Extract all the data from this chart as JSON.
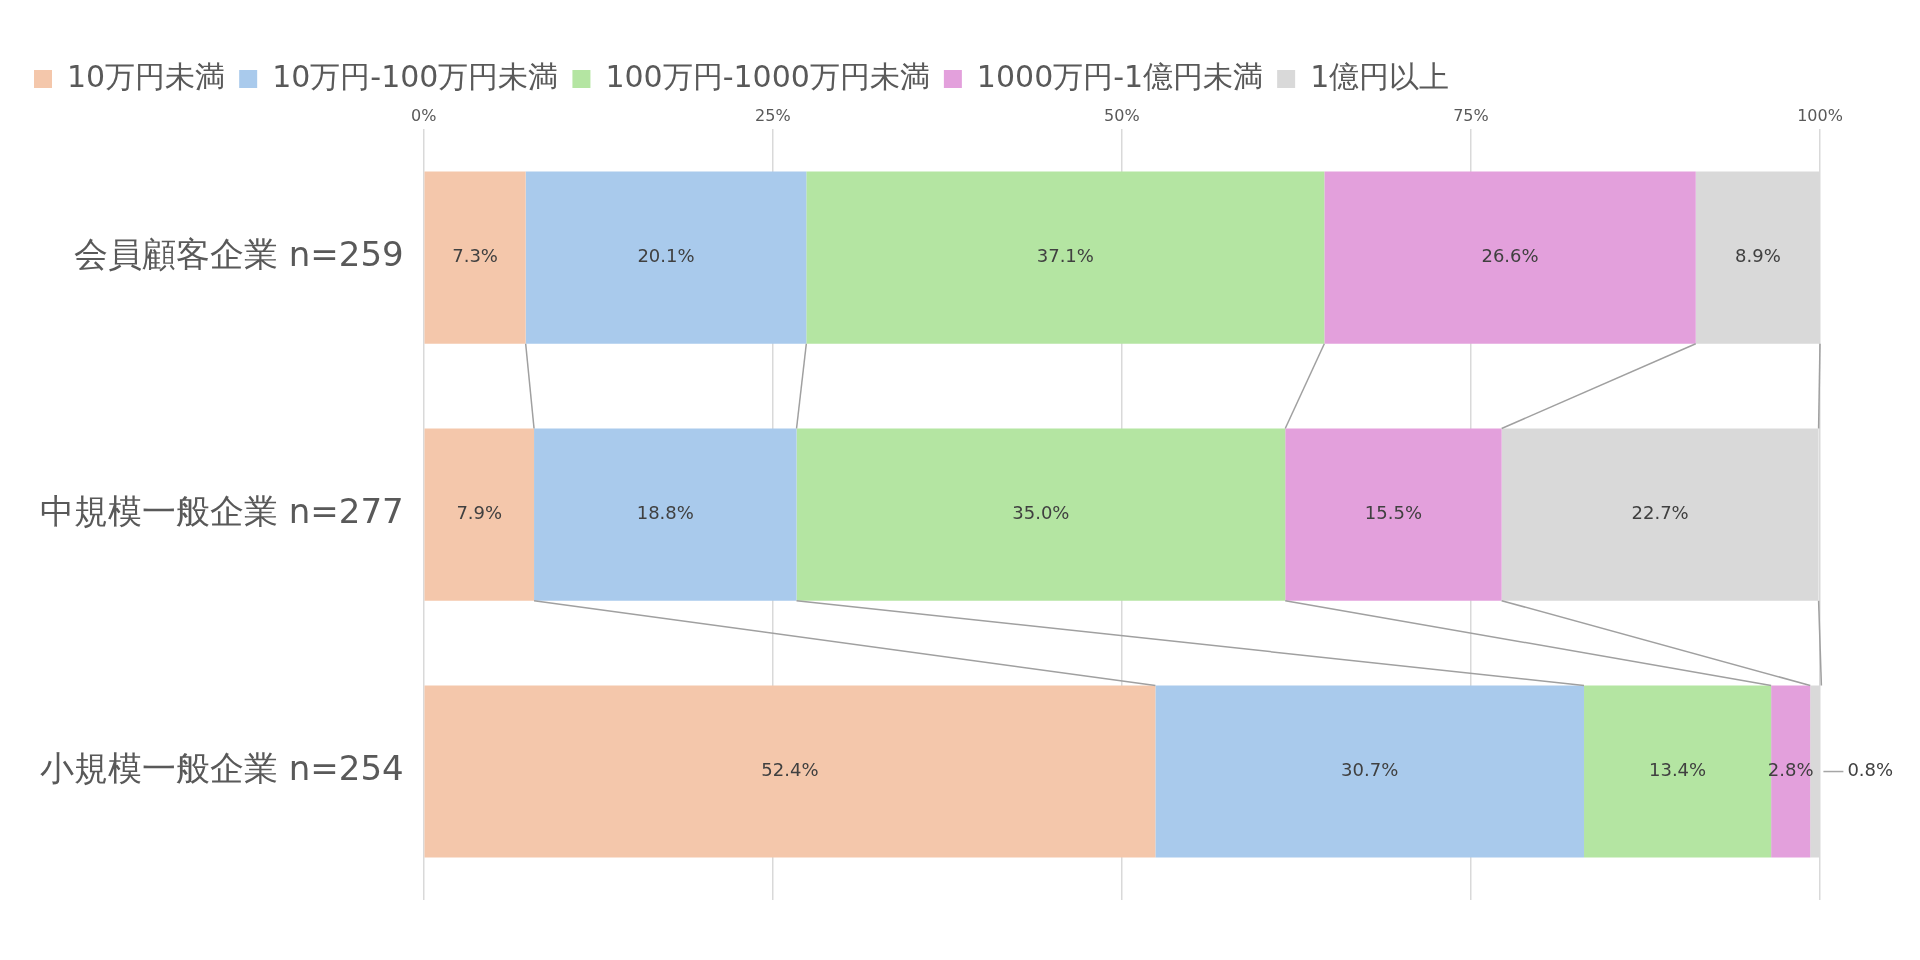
{
  "chart_data": {
    "type": "bar",
    "orientation": "horizontal",
    "stacked": true,
    "categories": [
      "会員顧客企業 n=259",
      "中規模一般企業 n=277",
      "小規模一般企業 n=254"
    ],
    "series": [
      {
        "name": "10万円未満",
        "color": "#f4c7ab",
        "values": [
          7.3,
          7.9,
          52.4
        ],
        "value_labels": [
          "7.3%",
          "7.9%",
          "52.4%"
        ]
      },
      {
        "name": "10万円-100万円未満",
        "color": "#a9caec",
        "values": [
          20.1,
          18.8,
          30.7
        ],
        "value_labels": [
          "20.1%",
          "18.8%",
          "30.7%"
        ]
      },
      {
        "name": "100万円-1000万円未満",
        "color": "#b4e5a2",
        "values": [
          37.1,
          35.0,
          13.4
        ],
        "value_labels": [
          "37.1%",
          "35.0%",
          "13.4%"
        ]
      },
      {
        "name": "1000万円-1億円未満",
        "color": "#e3a0dc",
        "values": [
          26.6,
          15.5,
          2.8
        ],
        "value_labels": [
          "26.6%",
          "15.5%",
          "2.8%"
        ]
      },
      {
        "name": "1億円以上",
        "color": "#d9d9d9",
        "values": [
          8.9,
          22.7,
          0.8
        ],
        "value_labels": [
          "8.9%",
          "22.7%",
          "0.8%"
        ]
      }
    ],
    "xlim": [
      0,
      100
    ],
    "xticks": [
      {
        "value": 0,
        "label": "0%"
      },
      {
        "value": 25,
        "label": "25%"
      },
      {
        "value": 50,
        "label": "50%"
      },
      {
        "value": 75,
        "label": "75%"
      },
      {
        "value": 100,
        "label": "100%"
      }
    ],
    "grid": "x",
    "legend": "top"
  }
}
